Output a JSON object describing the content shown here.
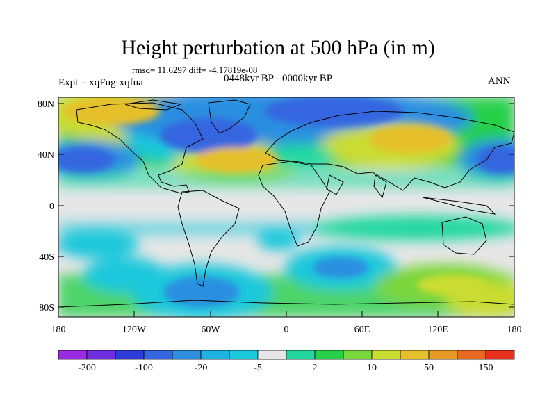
{
  "title": "Height perturbation at 500 hPa (in m)",
  "stats": "rmsd= 11.6297 diff= -4.17819e-08",
  "expt": "Expt = xqFug-xqfua",
  "period": "0448kyr BP - 0000kyr BP",
  "season": "ANN",
  "lat_ticks": [
    "80N",
    "40N",
    "0",
    "40S",
    "80S"
  ],
  "lon_ticks": [
    "180",
    "120W",
    "60W",
    "0",
    "60E",
    "120E",
    "180"
  ],
  "colorbar": {
    "colors": [
      "#9a2be2",
      "#6c2ee0",
      "#2b3bd6",
      "#3466e0",
      "#2c8fe0",
      "#1cb3e0",
      "#1cc8dc",
      "#e6e6e6",
      "#22d8a0",
      "#28d04a",
      "#7ad63a",
      "#cadc30",
      "#e6c02a",
      "#e89a26",
      "#e86a22",
      "#e8301e"
    ],
    "labels": [
      "-200",
      "-100",
      "-20",
      "-5",
      "2",
      "10",
      "50",
      "150"
    ]
  }
}
